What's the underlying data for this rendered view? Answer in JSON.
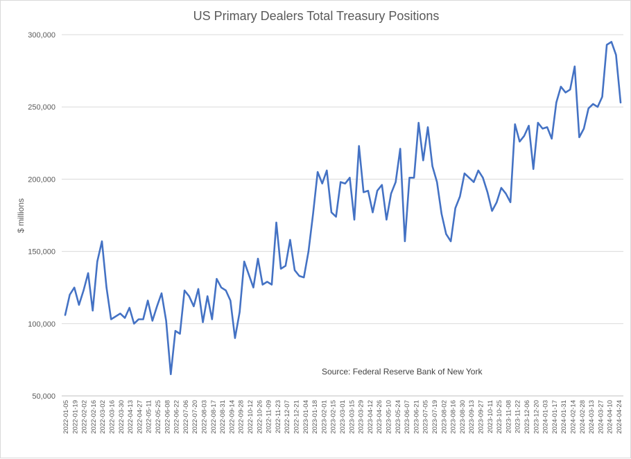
{
  "chart_data": {
    "type": "line",
    "title": "US Primary Dealers Total Treasury Positions",
    "xlabel": "",
    "ylabel": "$ millions",
    "ylim": [
      50000,
      300000
    ],
    "yticks": [
      50000,
      100000,
      150000,
      200000,
      250000,
      300000
    ],
    "ytick_labels": [
      "50,000",
      "100,000",
      "150,000",
      "200,000",
      "250,000",
      "300,000"
    ],
    "grid": true,
    "legend": "none",
    "annotation": "Source: Federal Reserve Bank of New York",
    "series_color": "#4472C4",
    "x_tick_labels": [
      "2022-01-05",
      "2022-01-19",
      "2022-02-02",
      "2022-02-16",
      "2022-03-02",
      "2022-03-16",
      "2022-03-30",
      "2022-04-13",
      "2022-04-27",
      "2022-05-11",
      "2022-05-25",
      "2022-06-08",
      "2022-06-22",
      "2022-07-06",
      "2022-07-20",
      "2022-08-03",
      "2022-08-17",
      "2022-08-31",
      "2022-09-14",
      "2022-09-28",
      "2022-10-12",
      "2022-10-26",
      "2022-11-09",
      "2022-11-23",
      "2022-12-07",
      "2022-12-21",
      "2023-01-04",
      "2023-01-18",
      "2023-02-01",
      "2023-02-15",
      "2023-03-01",
      "2023-03-15",
      "2023-03-29",
      "2023-04-12",
      "2023-04-26",
      "2023-05-10",
      "2023-05-24",
      "2023-06-07",
      "2023-06-21",
      "2023-07-05",
      "2023-07-19",
      "2023-08-02",
      "2023-08-16",
      "2023-08-30",
      "2023-09-13",
      "2023-09-27",
      "2023-10-11",
      "2023-10-25",
      "2023-11-08",
      "2023-11-22",
      "2023-12-06",
      "2023-12-20",
      "2024-01-03",
      "2024-01-17",
      "2024-01-31",
      "2024-02-14",
      "2024-02-28",
      "2024-03-13",
      "2024-03-27",
      "2024-04-10",
      "2024-04-24"
    ],
    "series": [
      {
        "values": [
          106000,
          120000,
          125000,
          113000,
          123000,
          135000,
          109000,
          143000,
          157000,
          125000,
          103000,
          105000,
          107000,
          104000,
          111000,
          100000,
          103000,
          103000,
          116000,
          102000,
          112000,
          121000,
          102000,
          65000,
          95000,
          93000,
          123000,
          119000,
          112000,
          124000,
          101000,
          119000,
          103000,
          131000,
          125000,
          123000,
          116000,
          90000,
          108000,
          143000,
          134000,
          125000,
          145000,
          127000,
          129000,
          127000,
          170000,
          138000,
          140000,
          158000,
          137000,
          133000,
          132000,
          150000,
          176000,
          205000,
          197000,
          206000,
          177000,
          174000,
          198000,
          197000,
          201000,
          172000,
          223000,
          191000,
          192000,
          177000,
          192000,
          196000,
          172000,
          190000,
          198000,
          221000,
          157000,
          201000,
          201000,
          239000,
          213000,
          236000,
          209000,
          198000,
          176000,
          162000,
          157000,
          180000,
          188000,
          204000,
          201000,
          198000,
          206000,
          201000,
          191000,
          178000,
          184000,
          194000,
          190000,
          184000,
          238000,
          226000,
          230000,
          237000,
          207000,
          239000,
          235000,
          236000,
          228000,
          253000,
          264000,
          260000,
          262000,
          278000,
          229000,
          235000,
          249000,
          252000,
          250000,
          257000,
          293000,
          295000,
          286000,
          253000
        ]
      }
    ]
  }
}
